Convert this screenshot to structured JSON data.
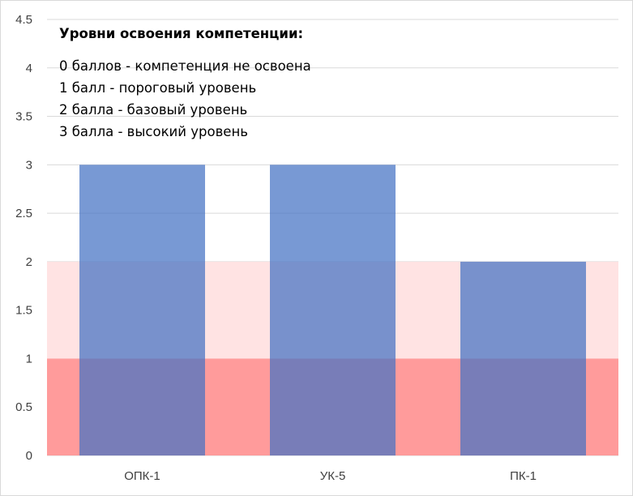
{
  "chart_data": {
    "type": "bar",
    "categories": [
      "ОПК-1",
      "УК-5",
      "ПК-1"
    ],
    "values": [
      3,
      3,
      2
    ],
    "ylim": [
      0,
      4.5
    ],
    "yticks": [
      "0",
      "0.5",
      "1",
      "1.5",
      "2",
      "2.5",
      "3",
      "3.5",
      "4",
      "4.5"
    ],
    "bands": [
      {
        "from": 0,
        "to": 1,
        "color": "#ff9b9b"
      },
      {
        "from": 1,
        "to": 2,
        "color": "#ffe3e3"
      }
    ],
    "bar_color": "#4472c4",
    "grid": true,
    "legend": {
      "title": "Уровни освоения компетенции:",
      "lines": [
        "0 баллов - компетенция не освоена",
        "1 балл - пороговый уровень",
        "2 балла - базовый уровень",
        "3 балла - высокий уровень"
      ]
    }
  }
}
